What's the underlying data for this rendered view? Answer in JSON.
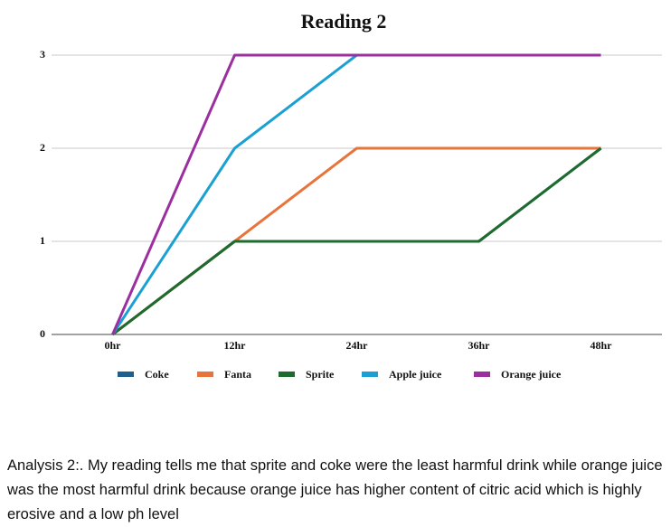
{
  "chart_data": {
    "type": "line",
    "title": "Reading 2",
    "categories": [
      "0hr",
      "12hr",
      "24hr",
      "36hr",
      "48hr"
    ],
    "series": [
      {
        "name": "Coke",
        "color": "#1f5f8b",
        "values": [
          0,
          1,
          1,
          1,
          2
        ]
      },
      {
        "name": "Fanta",
        "color": "#e8743b",
        "values": [
          0,
          1,
          2,
          2,
          2
        ]
      },
      {
        "name": "Sprite",
        "color": "#1e6b2e",
        "values": [
          0,
          1,
          1,
          1,
          2
        ]
      },
      {
        "name": "Apple juice",
        "color": "#1aa0d2",
        "values": [
          0,
          2,
          3,
          3,
          3
        ]
      },
      {
        "name": "Orange juice",
        "color": "#9b2fa0",
        "values": [
          0,
          3,
          3,
          3,
          3
        ]
      }
    ],
    "ylim": [
      0,
      3
    ],
    "yticks": [
      0,
      1,
      2,
      3
    ],
    "grid": true,
    "legend": "bottom"
  },
  "analysis": "Analysis 2:. My reading tells me that sprite and coke were the least harmful drink while orange juice was the most harmful drink because orange juice has higher content of citric acid which is highly erosive and a low ph level"
}
